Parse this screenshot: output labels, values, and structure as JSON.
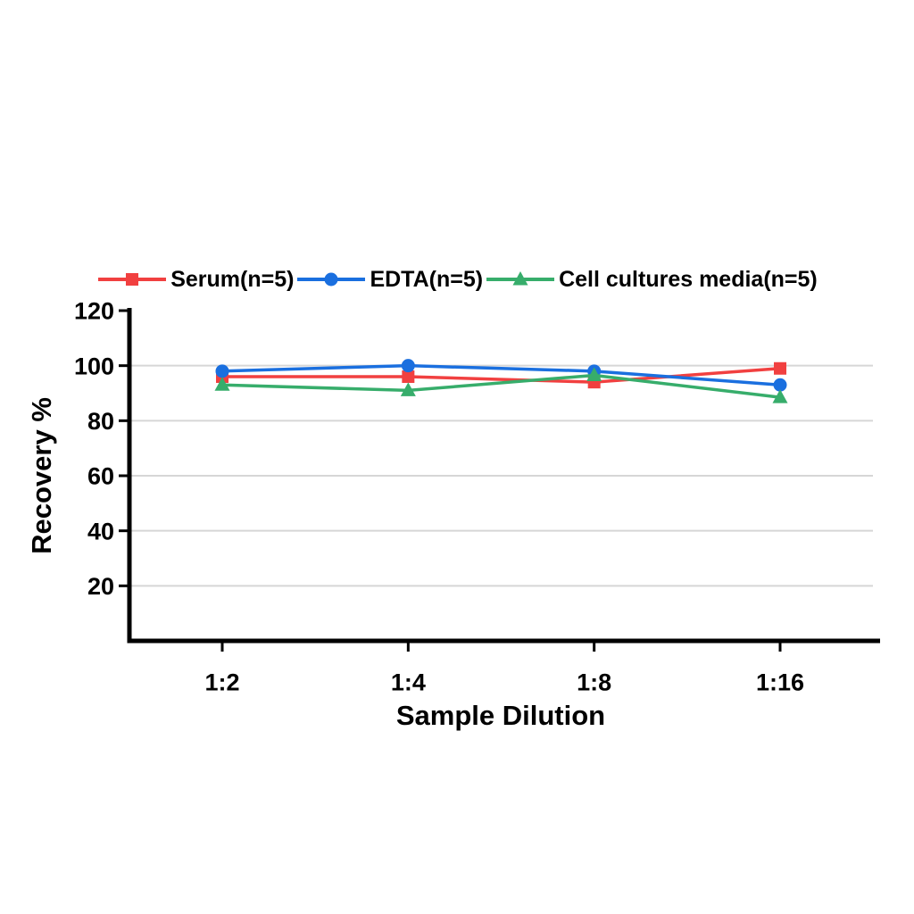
{
  "page": {
    "background": "#ffffff"
  },
  "chart_data": {
    "type": "line",
    "title": "",
    "categories": [
      "1:2",
      "1:4",
      "1:8",
      "1:16"
    ],
    "series": [
      {
        "name": "Serum(n=5)",
        "color": "#F14040",
        "marker": "square",
        "values": [
          96,
          96,
          94,
          99
        ]
      },
      {
        "name": "EDTA(n=5)",
        "color": "#1A6FDF",
        "marker": "circle",
        "values": [
          98,
          100,
          98,
          93
        ]
      },
      {
        "name": "Cell cultures media(n=5)",
        "color": "#37AD6B",
        "marker": "triangle",
        "values": [
          93,
          91,
          96.5,
          88.5
        ]
      }
    ],
    "xlabel": "Sample Dilution",
    "ylabel": "Recovery %",
    "ylim": [
      0,
      120
    ],
    "yticks": [
      20,
      40,
      60,
      80,
      100,
      120
    ],
    "grid": true,
    "gridline_color": "#d6d6d6",
    "axis_color": "#000000",
    "legend_position": "top"
  }
}
